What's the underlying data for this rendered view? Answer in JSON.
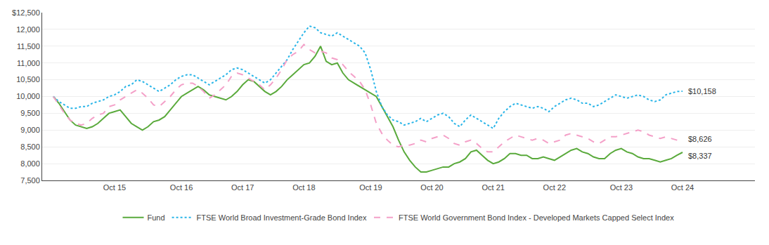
{
  "chart_data": {
    "type": "line",
    "categories": [
      null,
      null,
      null,
      null,
      null,
      null,
      null,
      null,
      null,
      null,
      null,
      "Oct 15",
      null,
      null,
      null,
      null,
      null,
      null,
      null,
      null,
      null,
      null,
      null,
      "Oct 16",
      null,
      null,
      null,
      null,
      null,
      null,
      null,
      null,
      null,
      null,
      "Oct 17",
      null,
      null,
      null,
      null,
      null,
      null,
      null,
      null,
      null,
      null,
      "Oct 18",
      null,
      null,
      null,
      null,
      null,
      null,
      null,
      null,
      null,
      null,
      null,
      "Oct 19",
      null,
      null,
      null,
      null,
      null,
      null,
      null,
      null,
      null,
      null,
      "Oct 20",
      null,
      null,
      null,
      null,
      null,
      null,
      null,
      null,
      null,
      null,
      "Oct 21",
      null,
      null,
      null,
      null,
      null,
      null,
      null,
      null,
      null,
      null,
      "Oct 22",
      null,
      null,
      null,
      null,
      null,
      null,
      null,
      null,
      null,
      null,
      null,
      "Oct 23",
      null,
      null,
      null,
      null,
      null,
      null,
      null,
      null,
      null,
      null,
      "Oct 24"
    ],
    "series": [
      {
        "name": "Fund",
        "color": "#5aaa3c",
        "line_style": "solid",
        "values": [
          10000,
          9800,
          9550,
          9300,
          9150,
          9100,
          9050,
          9100,
          9200,
          9350,
          9500,
          9550,
          9600,
          9400,
          9200,
          9100,
          9000,
          9100,
          9250,
          9300,
          9400,
          9600,
          9800,
          10000,
          10100,
          10200,
          10300,
          10200,
          10050,
          10000,
          9950,
          9900,
          10000,
          10150,
          10350,
          10500,
          10450,
          10300,
          10150,
          10050,
          10150,
          10300,
          10500,
          10650,
          10800,
          10950,
          11000,
          11200,
          11500,
          11050,
          10950,
          11000,
          10700,
          10500,
          10400,
          10300,
          10200,
          10100,
          10000,
          9700,
          9400,
          9100,
          8700,
          8350,
          8100,
          7900,
          7750,
          7750,
          7800,
          7850,
          7900,
          7900,
          8000,
          8050,
          8150,
          8350,
          8400,
          8250,
          8100,
          8000,
          8050,
          8150,
          8300,
          8300,
          8250,
          8250,
          8150,
          8150,
          8200,
          8150,
          8100,
          8200,
          8300,
          8400,
          8450,
          8350,
          8300,
          8200,
          8150,
          8150,
          8300,
          8400,
          8450,
          8350,
          8300,
          8200,
          8150,
          8150,
          8100,
          8050,
          8100,
          8150,
          8250,
          8337
        ]
      },
      {
        "name": "FTSE World Broad Investment-Grade Bond Index",
        "color": "#29b5e8",
        "line_style": "dotted",
        "values": [
          10000,
          9850,
          9750,
          9650,
          9650,
          9700,
          9700,
          9800,
          9850,
          9900,
          10000,
          10050,
          10150,
          10300,
          10350,
          10500,
          10450,
          10350,
          10250,
          10150,
          10250,
          10350,
          10500,
          10600,
          10650,
          10650,
          10550,
          10450,
          10350,
          10450,
          10550,
          10650,
          10800,
          10850,
          10800,
          10700,
          10600,
          10500,
          10400,
          10500,
          10700,
          10900,
          11100,
          11400,
          11650,
          11900,
          12100,
          12050,
          11900,
          11850,
          11800,
          11900,
          11800,
          11700,
          11600,
          11500,
          11300,
          10800,
          10150,
          9700,
          9450,
          9300,
          9250,
          9150,
          9200,
          9250,
          9350,
          9250,
          9350,
          9450,
          9500,
          9400,
          9200,
          9100,
          9300,
          9450,
          9350,
          9250,
          9150,
          9050,
          9350,
          9550,
          9700,
          9800,
          9750,
          9700,
          9650,
          9700,
          9650,
          9550,
          9700,
          9800,
          9900,
          9950,
          9900,
          9800,
          9800,
          9700,
          9750,
          9850,
          9950,
          10050,
          10000,
          9950,
          10000,
          10050,
          10000,
          9900,
          9850,
          9900,
          10050,
          10100,
          10150,
          10158
        ]
      },
      {
        "name": "FTSE World Government Bond Index - Developed Markets Capped Select Index",
        "color": "#f4a0c8",
        "line_style": "dashed",
        "values": [
          10000,
          9750,
          9500,
          9300,
          9200,
          9150,
          9200,
          9350,
          9450,
          9500,
          9700,
          9750,
          9900,
          10000,
          10100,
          10200,
          10100,
          9950,
          9750,
          9700,
          9850,
          10000,
          10200,
          10350,
          10400,
          10400,
          10300,
          10150,
          9950,
          10050,
          10200,
          10350,
          10600,
          10700,
          10650,
          10550,
          10450,
          10350,
          10200,
          10350,
          10550,
          10800,
          11100,
          11250,
          11350,
          11550,
          11400,
          11300,
          11350,
          11300,
          11150,
          11100,
          10950,
          10750,
          10600,
          10450,
          10200,
          9750,
          9200,
          8900,
          8700,
          8550,
          8500,
          8550,
          8550,
          8600,
          8700,
          8650,
          8750,
          8800,
          8850,
          8750,
          8600,
          8550,
          8650,
          8700,
          8600,
          8450,
          8350,
          8350,
          8500,
          8650,
          8750,
          8850,
          8800,
          8750,
          8700,
          8750,
          8700,
          8600,
          8650,
          8700,
          8850,
          8900,
          8850,
          8800,
          8750,
          8650,
          8600,
          8700,
          8800,
          8800,
          8850,
          8900,
          8950,
          9000,
          8950,
          8850,
          8800,
          8750,
          8800,
          8750,
          8700,
          8626
        ]
      }
    ],
    "ylim": [
      7500,
      12500
    ],
    "yticks": [
      {
        "value": 7500,
        "label": "7,500"
      },
      {
        "value": 8000,
        "label": "8,000"
      },
      {
        "value": 8500,
        "label": "8,500"
      },
      {
        "value": 9000,
        "label": "9,000"
      },
      {
        "value": 9500,
        "label": "9,500"
      },
      {
        "value": 10000,
        "label": "10,000"
      },
      {
        "value": 10500,
        "label": "10,500"
      },
      {
        "value": 11000,
        "label": "11,000"
      },
      {
        "value": 11500,
        "label": "11,500"
      },
      {
        "value": 12000,
        "label": "12,000"
      },
      {
        "value": 12500,
        "label": "$12,500"
      }
    ],
    "grid": "y",
    "legend": "bottom",
    "annotations": [
      {
        "series": "FTSE World Broad Investment-Grade Bond Index",
        "text": "$10,158"
      },
      {
        "series": "FTSE World Government Bond Index - Developed Markets Capped Select Index",
        "text": "$8,626"
      },
      {
        "series": "Fund",
        "text": "$8,337"
      }
    ]
  }
}
